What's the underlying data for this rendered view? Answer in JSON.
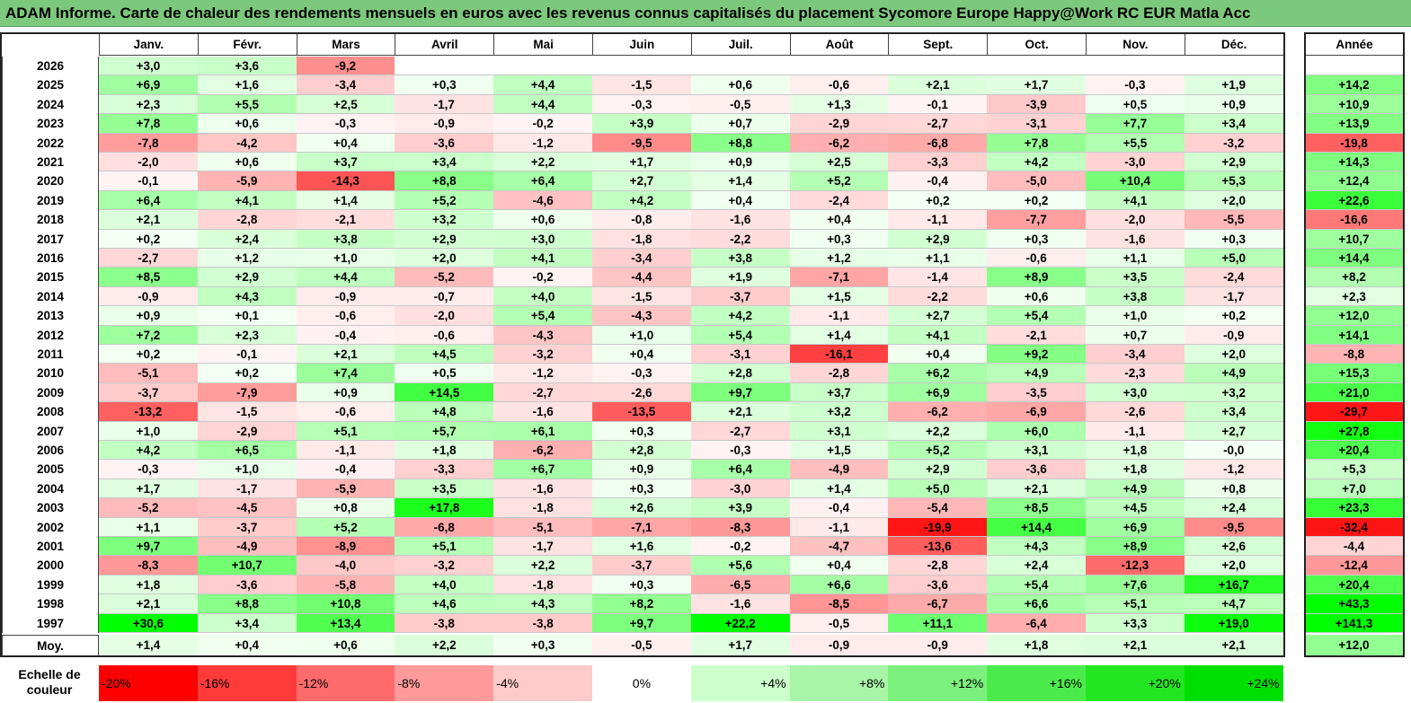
{
  "title": "ADAM Informe. Carte de chaleur des rendements mensuels en euros avec les revenus connus capitalisés du placement Sycomore Europe Happy@Work RC EUR Matla Acc",
  "chart_data": {
    "type": "heatmap",
    "columns": [
      "Janv.",
      "Févr.",
      "Mars",
      "Avril",
      "Mai",
      "Juin",
      "Juil.",
      "Août",
      "Sept.",
      "Oct.",
      "Nov.",
      "Déc."
    ],
    "year_header": "Année",
    "rows": [
      {
        "year": "2026",
        "values": [
          "+3,0",
          "+3,6",
          "-9,2",
          "",
          "",
          "",
          "",
          "",
          "",
          "",
          "",
          ""
        ],
        "annual": ""
      },
      {
        "year": "2025",
        "values": [
          "+6,9",
          "+1,6",
          "-3,4",
          "+0,3",
          "+4,4",
          "-1,5",
          "+0,6",
          "-0,6",
          "+2,1",
          "+1,7",
          "-0,3",
          "+1,9"
        ],
        "annual": "+14,2"
      },
      {
        "year": "2024",
        "values": [
          "+2,3",
          "+5,5",
          "+2,5",
          "-1,7",
          "+4,4",
          "-0,3",
          "-0,5",
          "+1,3",
          "-0,1",
          "-3,9",
          "+0,5",
          "+0,9"
        ],
        "annual": "+10,9"
      },
      {
        "year": "2023",
        "values": [
          "+7,8",
          "+0,6",
          "-0,3",
          "-0,9",
          "-0,2",
          "+3,9",
          "+0,7",
          "-2,9",
          "-2,7",
          "-3,1",
          "+7,7",
          "+3,4"
        ],
        "annual": "+13,9"
      },
      {
        "year": "2022",
        "values": [
          "-7,8",
          "-4,2",
          "+0,4",
          "-3,6",
          "-1,2",
          "-9,5",
          "+8,8",
          "-6,2",
          "-6,8",
          "+7,8",
          "+5,5",
          "-3,2"
        ],
        "annual": "-19,8"
      },
      {
        "year": "2021",
        "values": [
          "-2,0",
          "+0,6",
          "+3,7",
          "+3,4",
          "+2,2",
          "+1,7",
          "+0,9",
          "+2,5",
          "-3,3",
          "+4,2",
          "-3,0",
          "+2,9"
        ],
        "annual": "+14,3"
      },
      {
        "year": "2020",
        "values": [
          "-0,1",
          "-5,9",
          "-14,3",
          "+8,8",
          "+6,4",
          "+2,7",
          "+1,4",
          "+5,2",
          "-0,4",
          "-5,0",
          "+10,4",
          "+5,3"
        ],
        "annual": "+12,4"
      },
      {
        "year": "2019",
        "values": [
          "+6,4",
          "+4,1",
          "+1,4",
          "+5,2",
          "-4,6",
          "+4,2",
          "+0,4",
          "-2,4",
          "+0,2",
          "+0,2",
          "+4,1",
          "+2,0"
        ],
        "annual": "+22,6"
      },
      {
        "year": "2018",
        "values": [
          "+2,1",
          "-2,8",
          "-2,1",
          "+3,2",
          "+0,6",
          "-0,8",
          "-1,6",
          "+0,4",
          "-1,1",
          "-7,7",
          "-2,0",
          "-5,5"
        ],
        "annual": "-16,6"
      },
      {
        "year": "2017",
        "values": [
          "+0,2",
          "+2,4",
          "+3,8",
          "+2,9",
          "+3,0",
          "-1,8",
          "-2,2",
          "+0,3",
          "+2,9",
          "+0,3",
          "-1,6",
          "+0,3"
        ],
        "annual": "+10,7"
      },
      {
        "year": "2016",
        "values": [
          "-2,7",
          "+1,2",
          "+1,0",
          "+2,0",
          "+4,1",
          "-3,4",
          "+3,8",
          "+1,2",
          "+1,1",
          "-0,6",
          "+1,1",
          "+5,0"
        ],
        "annual": "+14,4"
      },
      {
        "year": "2015",
        "values": [
          "+8,5",
          "+2,9",
          "+4,4",
          "-5,2",
          "-0,2",
          "-4,4",
          "+1,9",
          "-7,1",
          "-1,4",
          "+8,9",
          "+3,5",
          "-2,4"
        ],
        "annual": "+8,2"
      },
      {
        "year": "2014",
        "values": [
          "-0,9",
          "+4,3",
          "-0,9",
          "-0,7",
          "+4,0",
          "-1,5",
          "-3,7",
          "+1,5",
          "-2,2",
          "+0,6",
          "+3,8",
          "-1,7"
        ],
        "annual": "+2,3"
      },
      {
        "year": "2013",
        "values": [
          "+0,9",
          "+0,1",
          "-0,6",
          "-2,0",
          "+5,4",
          "-4,3",
          "+4,2",
          "-1,1",
          "+2,7",
          "+5,4",
          "+1,0",
          "+0,2"
        ],
        "annual": "+12,0"
      },
      {
        "year": "2012",
        "values": [
          "+7,2",
          "+2,3",
          "-0,4",
          "-0,6",
          "-4,3",
          "+1,0",
          "+5,4",
          "+1,4",
          "+4,1",
          "-2,1",
          "+0,7",
          "-0,9"
        ],
        "annual": "+14,1"
      },
      {
        "year": "2011",
        "values": [
          "+0,2",
          "-0,1",
          "+2,1",
          "+4,5",
          "-3,2",
          "+0,4",
          "-3,1",
          "-16,1",
          "+0,4",
          "+9,2",
          "-3,4",
          "+2,0"
        ],
        "annual": "-8,8"
      },
      {
        "year": "2010",
        "values": [
          "-5,1",
          "+0,2",
          "+7,4",
          "+0,5",
          "-1,2",
          "-0,3",
          "+2,8",
          "-2,8",
          "+6,2",
          "+4,9",
          "-2,3",
          "+4,9"
        ],
        "annual": "+15,3"
      },
      {
        "year": "2009",
        "values": [
          "-3,7",
          "-7,9",
          "+0,9",
          "+14,5",
          "-2,7",
          "-2,6",
          "+9,7",
          "+3,7",
          "+6,9",
          "-3,5",
          "+3,0",
          "+3,2"
        ],
        "annual": "+21,0"
      },
      {
        "year": "2008",
        "values": [
          "-13,2",
          "-1,5",
          "-0,6",
          "+4,8",
          "-1,6",
          "-13,5",
          "+2,1",
          "+3,2",
          "-6,2",
          "-6,9",
          "-2,6",
          "+3,4"
        ],
        "annual": "-29,7"
      },
      {
        "year": "2007",
        "values": [
          "+1,0",
          "-2,9",
          "+5,1",
          "+5,7",
          "+6,1",
          "+0,3",
          "-2,7",
          "+3,1",
          "+2,2",
          "+6,0",
          "-1,1",
          "+2,7"
        ],
        "annual": "+27,8"
      },
      {
        "year": "2006",
        "values": [
          "+4,2",
          "+6,5",
          "-1,1",
          "+1,8",
          "-6,2",
          "+2,8",
          "-0,3",
          "+1,5",
          "+5,2",
          "+3,1",
          "+1,8",
          "-0,0"
        ],
        "annual": "+20,4"
      },
      {
        "year": "2005",
        "values": [
          "-0,3",
          "+1,0",
          "-0,4",
          "-3,3",
          "+6,7",
          "+0,9",
          "+6,4",
          "-4,9",
          "+2,9",
          "-3,6",
          "+1,8",
          "-1,2"
        ],
        "annual": "+5,3"
      },
      {
        "year": "2004",
        "values": [
          "+1,7",
          "-1,7",
          "-5,9",
          "+3,5",
          "-1,6",
          "+0,3",
          "-3,0",
          "+1,4",
          "+5,0",
          "+2,1",
          "+4,9",
          "+0,8"
        ],
        "annual": "+7,0"
      },
      {
        "year": "2003",
        "values": [
          "-5,2",
          "-4,5",
          "+0,8",
          "+17,8",
          "-1,8",
          "+2,6",
          "+3,9",
          "-0,4",
          "-5,4",
          "+8,5",
          "+4,5",
          "+2,4"
        ],
        "annual": "+23,3"
      },
      {
        "year": "2002",
        "values": [
          "+1,1",
          "-3,7",
          "+5,2",
          "-6,8",
          "-5,1",
          "-7,1",
          "-8,3",
          "-1,1",
          "-19,9",
          "+14,4",
          "+6,9",
          "-9,5"
        ],
        "annual": "-32,4"
      },
      {
        "year": "2001",
        "values": [
          "+9,7",
          "-4,9",
          "-8,9",
          "+5,1",
          "-1,7",
          "+1,6",
          "-0,2",
          "-4,7",
          "-13,6",
          "+4,3",
          "+8,9",
          "+2,6"
        ],
        "annual": "-4,4"
      },
      {
        "year": "2000",
        "values": [
          "-8,3",
          "+10,7",
          "-4,0",
          "-3,2",
          "+2,2",
          "-3,7",
          "+5,6",
          "+0,4",
          "-2,8",
          "+2,4",
          "-12,3",
          "+2,0"
        ],
        "annual": "-12,4"
      },
      {
        "year": "1999",
        "values": [
          "+1,8",
          "-3,6",
          "-5,8",
          "+4,0",
          "-1,8",
          "+0,3",
          "-6,5",
          "+6,6",
          "-3,6",
          "+5,4",
          "+7,6",
          "+16,7"
        ],
        "annual": "+20,4"
      },
      {
        "year": "1998",
        "values": [
          "+2,1",
          "+8,8",
          "+10,8",
          "+4,6",
          "+4,3",
          "+8,2",
          "-1,6",
          "-8,5",
          "-6,7",
          "+6,6",
          "+5,1",
          "+4,7"
        ],
        "annual": "+43,3"
      },
      {
        "year": "1997",
        "values": [
          "+30,6",
          "+3,4",
          "+13,4",
          "-3,8",
          "-3,8",
          "+9,7",
          "+22,2",
          "-0,5",
          "+11,1",
          "-6,4",
          "+3,3",
          "+19,0"
        ],
        "annual": "+141,3"
      }
    ],
    "average": {
      "label": "Moy.",
      "values": [
        "+1,4",
        "+0,4",
        "+0,6",
        "+2,2",
        "+0,3",
        "-0,5",
        "+1,7",
        "-0,9",
        "-0,9",
        "+1,8",
        "+2,1",
        "+2,1"
      ],
      "annual": "+12,0"
    },
    "scale": {
      "label_line1": "Echelle de",
      "label_line2": "couleur",
      "stops": [
        "-20%",
        "-16%",
        "-12%",
        "-8%",
        "-4%",
        "0%",
        "+4%",
        "+8%",
        "+12%",
        "+16%",
        "+20%",
        "+24%"
      ]
    },
    "colors": {
      "negative_max": "#ff0000",
      "neutral": "#ffffff",
      "positive_max": "#00ff00",
      "title_bg": "#7cc87c"
    }
  }
}
